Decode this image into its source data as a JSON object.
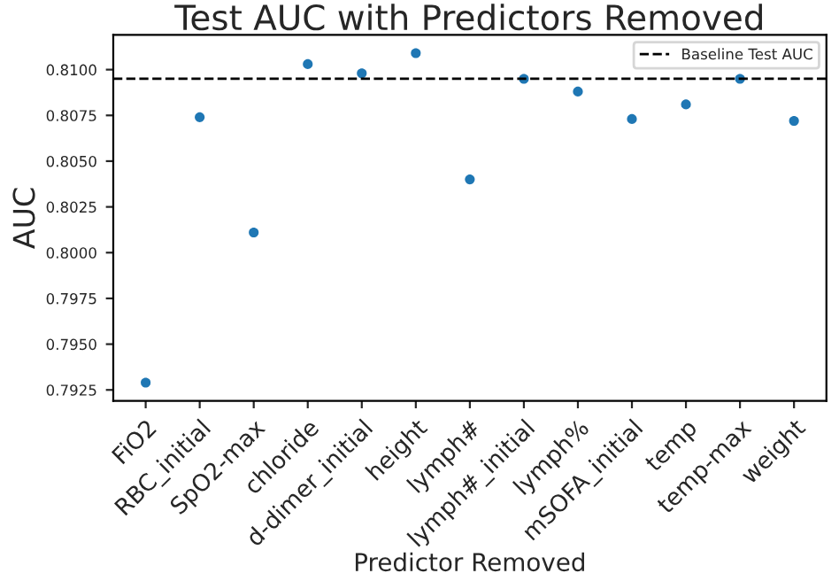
{
  "chart_data": {
    "type": "scatter",
    "title": "Test AUC with Predictors Removed",
    "xlabel": "Predictor Removed",
    "ylabel": "AUC",
    "categories": [
      "FiO2",
      "RBC_initial",
      "SpO2-max",
      "chloride",
      "d-dimer_initial",
      "height",
      "lymph#",
      "lymph#_initial",
      "lymph%",
      "mSOFA_initial",
      "temp",
      "temp-max",
      "weight"
    ],
    "series": [
      {
        "color": "#1f77b4",
        "values": [
          0.7929,
          0.8074,
          0.8011,
          0.8103,
          0.8098,
          0.8109,
          0.804,
          0.8095,
          0.8088,
          0.8073,
          0.8081,
          0.8095,
          0.8072
        ]
      }
    ],
    "ylim": [
      0.7919,
      0.8119
    ],
    "yticks": [
      {
        "value": 0.7925,
        "label": "0.7925"
      },
      {
        "value": 0.795,
        "label": "0.7950"
      },
      {
        "value": 0.7975,
        "label": "0.7975"
      },
      {
        "value": 0.8,
        "label": "0.8000"
      },
      {
        "value": 0.8025,
        "label": "0.8025"
      },
      {
        "value": 0.805,
        "label": "0.8050"
      },
      {
        "value": 0.8075,
        "label": "0.8075"
      },
      {
        "value": 0.81,
        "label": "0.8100"
      }
    ],
    "ref_lines": [
      {
        "axis": "y",
        "value": 0.8095,
        "label": "Baseline Test AUC",
        "color": "#000000",
        "line_style": "dashed"
      }
    ],
    "marker": "circle",
    "grid": false,
    "legend": "top right"
  }
}
